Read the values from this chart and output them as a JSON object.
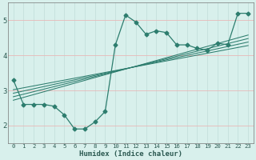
{
  "x_data": [
    0,
    1,
    2,
    3,
    4,
    5,
    6,
    7,
    8,
    9,
    10,
    11,
    12,
    13,
    14,
    15,
    16,
    17,
    18,
    19,
    20,
    21,
    22,
    23
  ],
  "y_main": [
    3.3,
    2.6,
    2.6,
    2.6,
    2.55,
    2.3,
    1.9,
    1.9,
    2.1,
    2.4,
    4.3,
    5.15,
    4.95,
    4.6,
    4.7,
    4.65,
    4.3,
    4.3,
    4.2,
    4.15,
    4.35,
    4.3,
    5.2,
    5.2
  ],
  "trend_lines": [
    {
      "x0": 0,
      "y0": 2.72,
      "x1": 23,
      "y1": 4.58
    },
    {
      "x0": 0,
      "y0": 2.82,
      "x1": 23,
      "y1": 4.48
    },
    {
      "x0": 0,
      "y0": 2.92,
      "x1": 23,
      "y1": 4.38
    },
    {
      "x0": 0,
      "y0": 3.02,
      "x1": 23,
      "y1": 4.28
    }
  ],
  "color": "#2d7d6e",
  "bg_color": "#d8f0ec",
  "grid_color": "#c0ddd8",
  "grid_major_color": "#e8b0b0",
  "xlabel": "Humidex (Indice chaleur)",
  "ylim": [
    1.5,
    5.5
  ],
  "xlim": [
    -0.5,
    23.5
  ],
  "yticks": [
    2,
    3,
    4,
    5
  ],
  "xticks": [
    0,
    1,
    2,
    3,
    4,
    5,
    6,
    7,
    8,
    9,
    10,
    11,
    12,
    13,
    14,
    15,
    16,
    17,
    18,
    19,
    20,
    21,
    22,
    23
  ],
  "marker": "D",
  "markersize": 2.5,
  "linewidth": 0.9,
  "trend_linewidth": 0.75
}
